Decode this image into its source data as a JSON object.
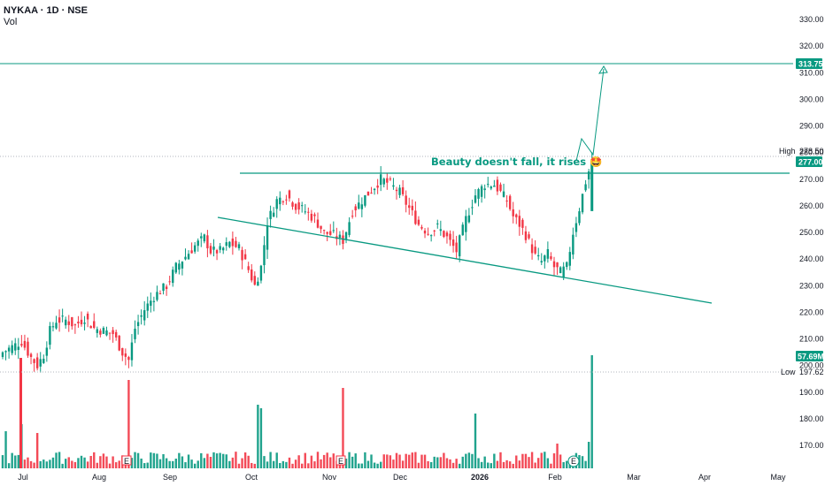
{
  "header": {
    "symbol": "NYKAA · 1D · NSE",
    "vol_label": "Vol"
  },
  "colors": {
    "up": "#089981",
    "down": "#f23645",
    "line": "#089981",
    "grid": "#b2b5be"
  },
  "price_axis": {
    "ticks": [
      "330.00",
      "320.00",
      "310.00",
      "300.00",
      "290.00",
      "280.00",
      "270.00",
      "260.00",
      "250.00",
      "240.00",
      "230.00",
      "220.00",
      "210.00",
      "200.00",
      "190.00",
      "180.00",
      "170.00"
    ]
  },
  "time_axis": {
    "labels": [
      "Jul",
      "Aug",
      "Sep",
      "Oct",
      "Nov",
      "Dec",
      "2026",
      "Feb",
      "Mar",
      "Apr",
      "May"
    ]
  },
  "tags": {
    "target": "313.75",
    "high_label": "High",
    "high_value": "278.50",
    "last": "277.00",
    "volume": "57.69M",
    "low_label": "Low",
    "low_value": "197.62"
  },
  "annotation": "Beauty doesn't fall, it rises 🤩",
  "event_marker": "E",
  "chart_data": {
    "type": "candlestick",
    "title": "NYKAA · 1D · NSE",
    "yrange": [
      165,
      333
    ],
    "x_months": [
      "Jul",
      "Aug",
      "Sep",
      "Oct",
      "Nov",
      "Dec",
      "2026",
      "Feb",
      "Mar",
      "Apr",
      "May"
    ],
    "close_path": [
      [
        0,
        205
      ],
      [
        3,
        207
      ],
      [
        6,
        209
      ],
      [
        9,
        203
      ],
      [
        11,
        200
      ],
      [
        13,
        204
      ],
      [
        15,
        213
      ],
      [
        17,
        217
      ],
      [
        20,
        217
      ],
      [
        23,
        215
      ],
      [
        26,
        218
      ],
      [
        29,
        214
      ],
      [
        32,
        213
      ],
      [
        35,
        212
      ],
      [
        38,
        205
      ],
      [
        40,
        202
      ],
      [
        42,
        214
      ],
      [
        45,
        221
      ],
      [
        48,
        226
      ],
      [
        52,
        230
      ],
      [
        55,
        237
      ],
      [
        58,
        241
      ],
      [
        61,
        245
      ],
      [
        64,
        248
      ],
      [
        66,
        243
      ],
      [
        69,
        243
      ],
      [
        72,
        246
      ],
      [
        75,
        244
      ],
      [
        78,
        236
      ],
      [
        80,
        230
      ],
      [
        82,
        237
      ],
      [
        84,
        254
      ],
      [
        87,
        262
      ],
      [
        90,
        264
      ],
      [
        93,
        260
      ],
      [
        96,
        258
      ],
      [
        99,
        255
      ],
      [
        102,
        250
      ],
      [
        105,
        249
      ],
      [
        108,
        247
      ],
      [
        111,
        258
      ],
      [
        114,
        262
      ],
      [
        117,
        266
      ],
      [
        120,
        270
      ],
      [
        123,
        268
      ],
      [
        126,
        265
      ],
      [
        129,
        259
      ],
      [
        132,
        253
      ],
      [
        135,
        250
      ],
      [
        138,
        252
      ],
      [
        141,
        248
      ],
      [
        144,
        243
      ],
      [
        147,
        255
      ],
      [
        150,
        264
      ],
      [
        153,
        268
      ],
      [
        156,
        268
      ],
      [
        158,
        265
      ],
      [
        160,
        262
      ],
      [
        162,
        256
      ],
      [
        164,
        253
      ],
      [
        166,
        249
      ],
      [
        169,
        241
      ],
      [
        171,
        239
      ],
      [
        173,
        242
      ],
      [
        175,
        237
      ],
      [
        177,
        235
      ],
      [
        179,
        237
      ],
      [
        181,
        250
      ],
      [
        183,
        259
      ],
      [
        185,
        269
      ],
      [
        187,
        277
      ]
    ],
    "resistance_line": 271,
    "target_price": 313.75,
    "high": 278.5,
    "low": 197.62,
    "last_close": 277.0,
    "last_volume": "57.69M"
  }
}
